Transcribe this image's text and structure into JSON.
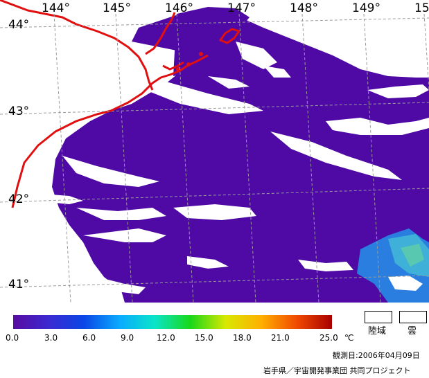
{
  "map": {
    "longitude_labels": [
      "144°",
      "145°",
      "146°",
      "147°",
      "148°",
      "149°",
      "15"
    ],
    "latitude_labels": [
      "44°",
      "43°",
      "42°",
      "41°"
    ]
  },
  "colorbar": {
    "ticks": [
      "0.0",
      "3.0",
      "6.0",
      "9.0",
      "12.0",
      "15.0",
      "18.0",
      "21.0",
      "25.0"
    ],
    "unit": "℃",
    "colors": [
      "#5a0aa0",
      "#3a2ad0",
      "#0a46e6",
      "#0aaaff",
      "#0ae5c8",
      "#18d81a",
      "#d8e800",
      "#ffb000",
      "#f04a00",
      "#a80000"
    ]
  },
  "legend": {
    "land_label": "陸域",
    "cloud_label": "雲"
  },
  "footer": {
    "observation_date": "観測日:2006年04月09日",
    "credit": "岩手県／宇宙開発事業団  共同プロジェクト"
  },
  "colors": {
    "sea": "#4f0aa6",
    "land": "#ffffff",
    "coastline": "#e01010",
    "grid": "#9a9a9a",
    "warm_water": "#2a7ee0"
  }
}
